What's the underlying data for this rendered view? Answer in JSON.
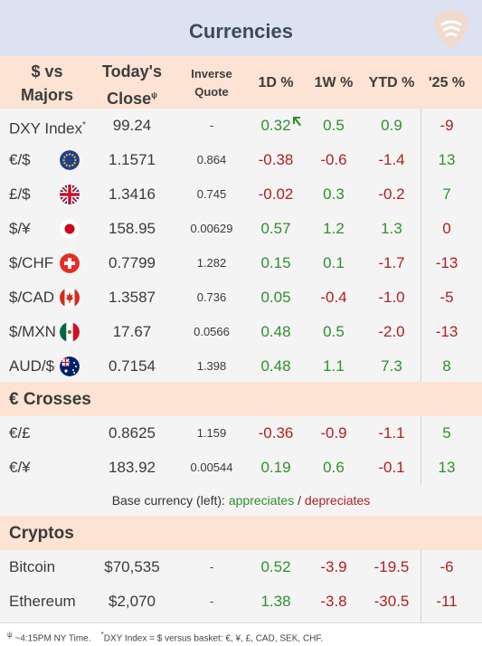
{
  "title": "Currencies",
  "headers": {
    "col1_line1": "$ vs",
    "col1_line2": "Majors",
    "close_line1": "Today's",
    "close_line2": "Close",
    "close_mark": "ψ",
    "inverse_line1": "Inverse",
    "inverse_line2": "Quote",
    "d1": "1D %",
    "w1": "1W %",
    "ytd": "YTD %",
    "y25": "'25 %"
  },
  "majors": [
    {
      "name": "DXY Index",
      "mark": "*",
      "close": "99.24",
      "inverse": "-",
      "d1": "0.32",
      "w1": "0.5",
      "ytd": "0.9",
      "y25": "-9",
      "flag": "none"
    },
    {
      "name": "€/$",
      "close": "1.1571",
      "inverse": "0.864",
      "d1": "-0.38",
      "w1": "-0.6",
      "ytd": "-1.4",
      "y25": "13",
      "flag": "eu-flag"
    },
    {
      "name": "£/$",
      "close": "1.3416",
      "inverse": "0.745",
      "d1": "-0.02",
      "w1": "0.3",
      "ytd": "-0.2",
      "y25": "7",
      "flag": "uk-flag"
    },
    {
      "name": "$/¥",
      "close": "158.95",
      "inverse": "0.00629",
      "d1": "0.57",
      "w1": "1.2",
      "ytd": "1.3",
      "y25": "0",
      "flag": "japan-flag"
    },
    {
      "name": "$/CHF",
      "close": "0.7799",
      "inverse": "1.282",
      "d1": "0.15",
      "w1": "0.1",
      "ytd": "-1.7",
      "y25": "-13",
      "flag": "swiss-flag"
    },
    {
      "name": "$/CAD",
      "close": "1.3587",
      "inverse": "0.736",
      "d1": "0.05",
      "w1": "-0.4",
      "ytd": "-1.0",
      "y25": "-5",
      "flag": "canada-flag"
    },
    {
      "name": "$/MXN",
      "close": "17.67",
      "inverse": "0.0566",
      "d1": "0.48",
      "w1": "0.5",
      "ytd": "-2.0",
      "y25": "-13",
      "flag": "mexico-flag"
    },
    {
      "name": "AUD/$",
      "close": "0.7154",
      "inverse": "1.398",
      "d1": "0.48",
      "w1": "1.1",
      "ytd": "7.3",
      "y25": "8",
      "flag": "australia-flag"
    }
  ],
  "crosses_label": "€ Crosses",
  "crosses": [
    {
      "name": "€/£",
      "close": "0.8625",
      "inverse": "1.159",
      "d1": "-0.36",
      "w1": "-0.9",
      "ytd": "-1.1",
      "y25": "5"
    },
    {
      "name": "€/¥",
      "close": "183.92",
      "inverse": "0.00544",
      "d1": "0.19",
      "w1": "0.6",
      "ytd": "-0.1",
      "y25": "13"
    }
  ],
  "legend": {
    "prefix": "Base currency (left):",
    "appreciates": "appreciates",
    "sep": "/",
    "depreciates": "depreciates"
  },
  "cryptos_label": "Cryptos",
  "cryptos": [
    {
      "name": "Bitcoin",
      "close": "$70,535",
      "inverse": "-",
      "d1": "0.52",
      "w1": "-3.9",
      "ytd": "-19.5",
      "y25": "-6"
    },
    {
      "name": "Ethereum",
      "close": "$2,070",
      "inverse": "-",
      "d1": "1.38",
      "w1": "-3.8",
      "ytd": "-30.5",
      "y25": "-11"
    }
  ],
  "footnote": {
    "mark1": "ψ",
    "text1": " ~4:15PM NY Time.",
    "mark2": "*",
    "text2": "DXY Index = $ versus basket: €, ¥, £, CAD, SEK, CHF."
  },
  "colors": {
    "positive": "#2f8f2f",
    "negative": "#b02020",
    "header_bg": "#fce3d3",
    "title_bg": "#dce2f2"
  }
}
